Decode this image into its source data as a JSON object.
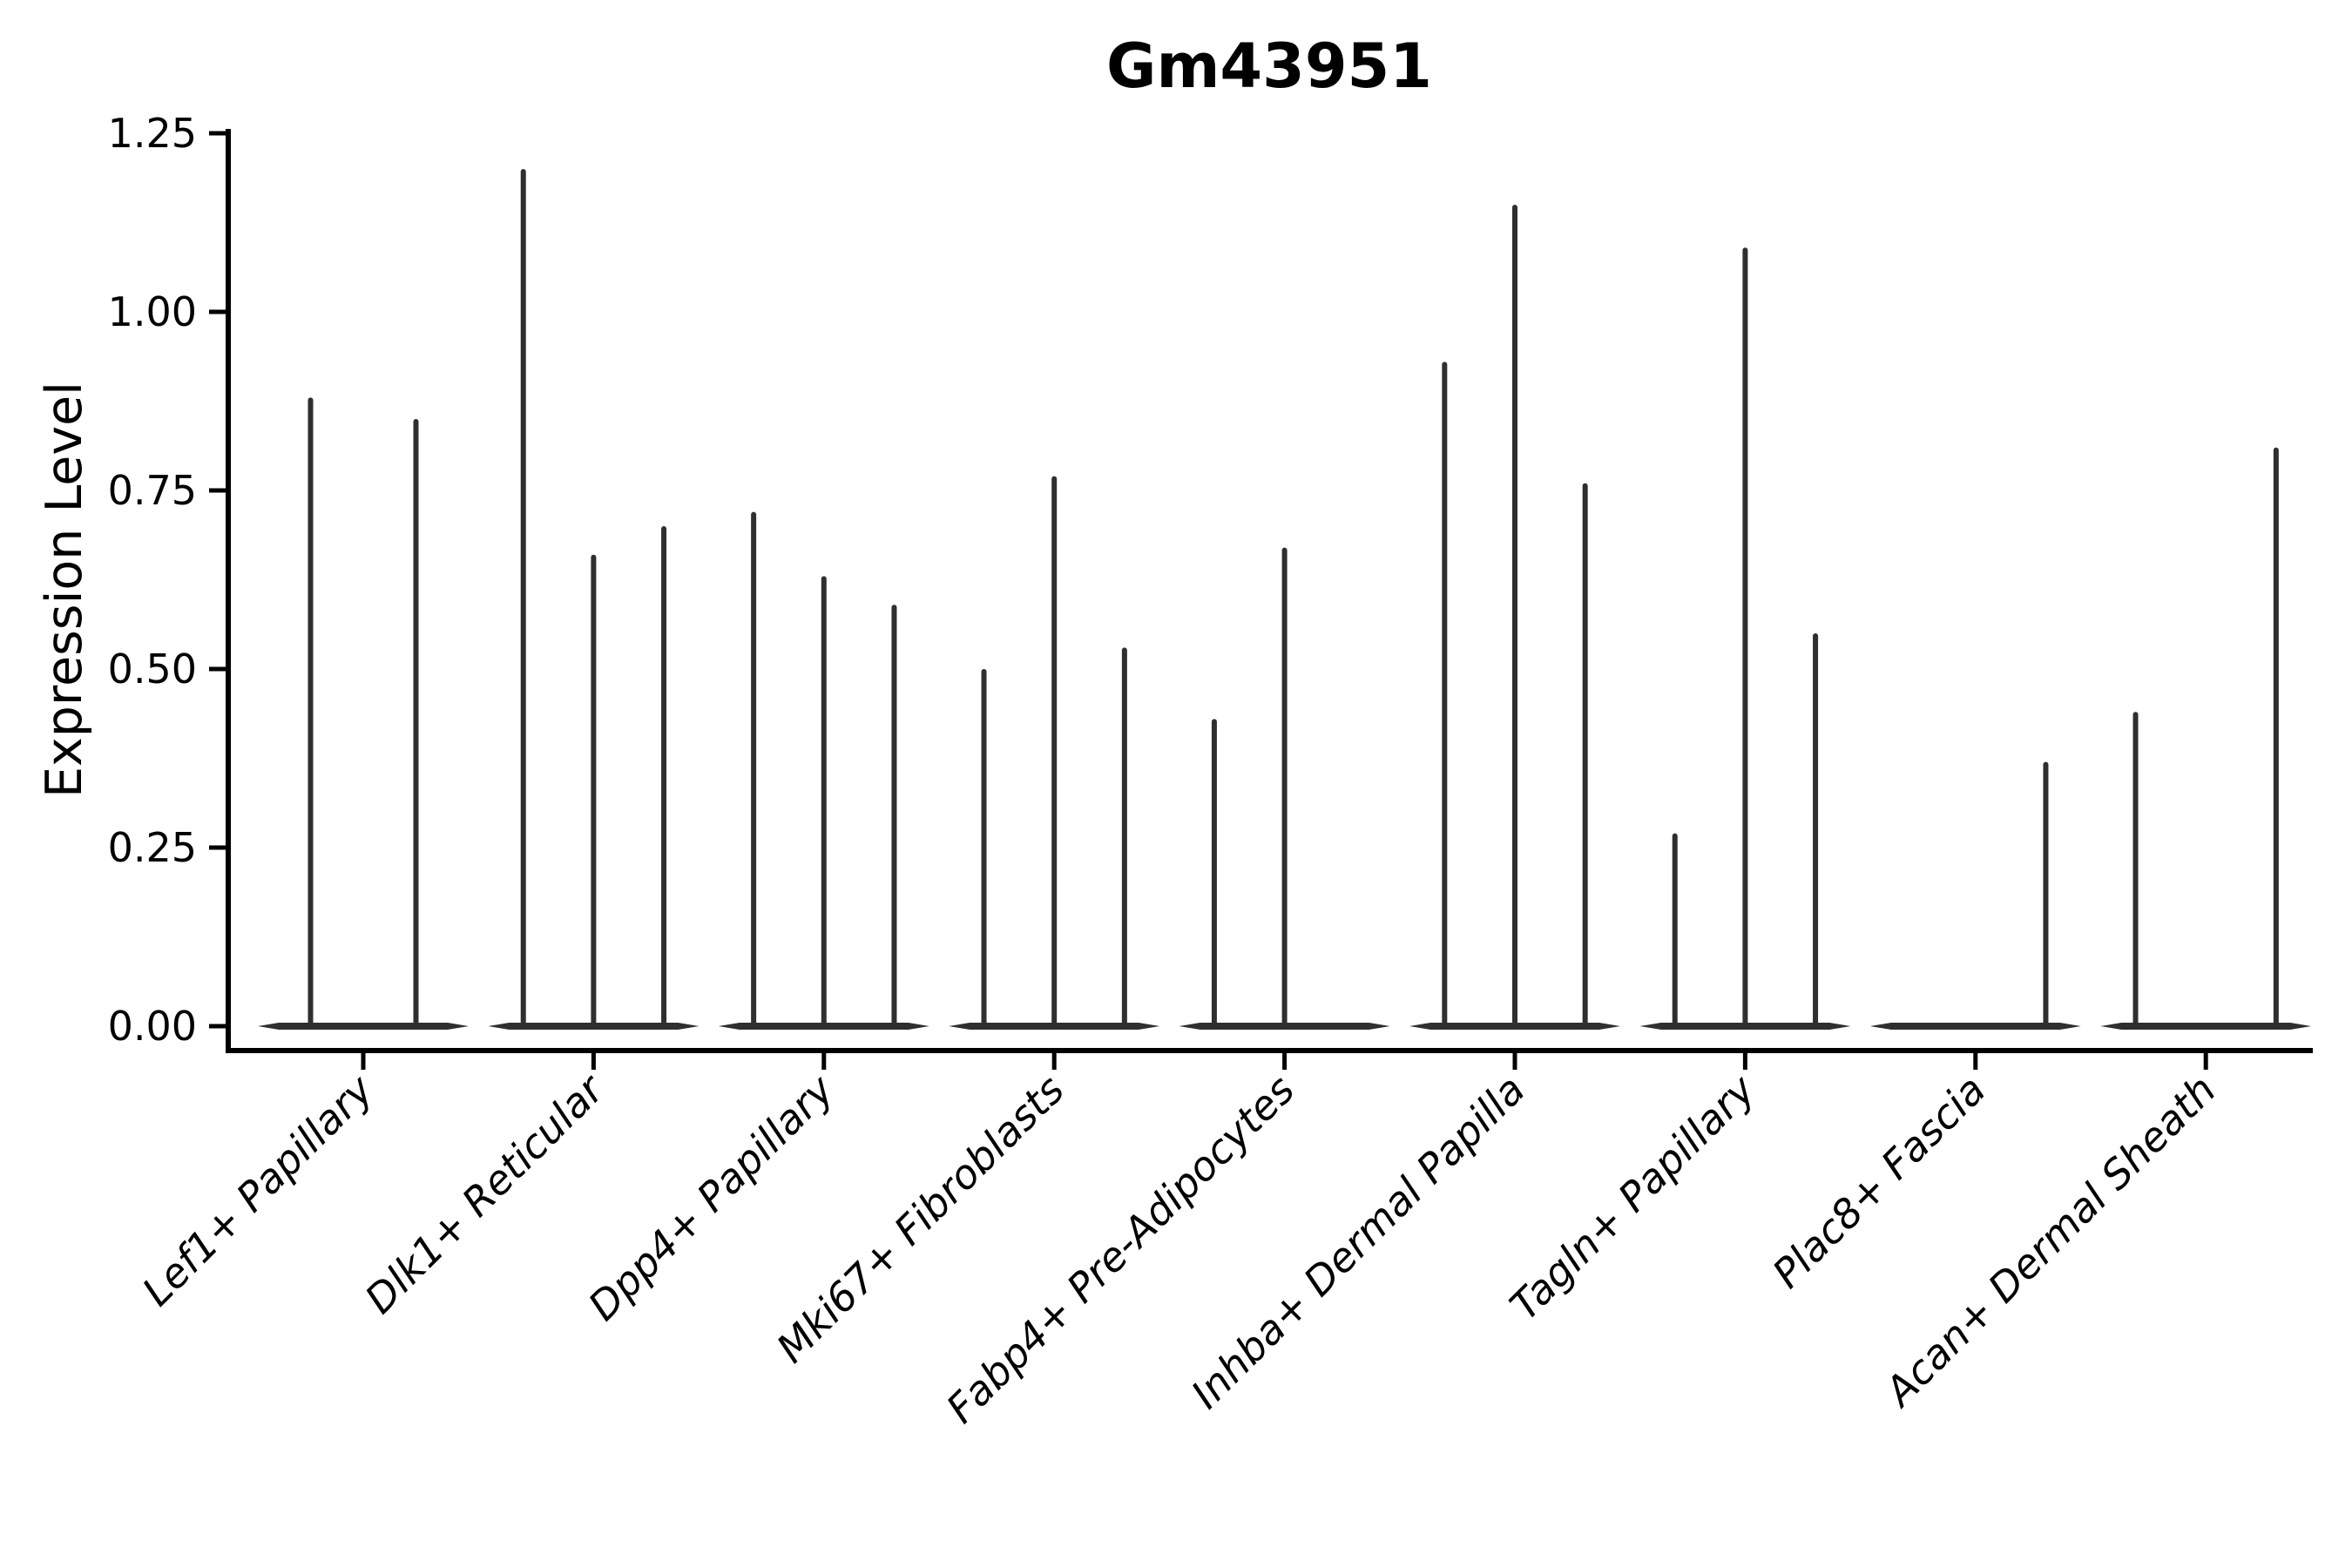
{
  "chart_data": {
    "type": "violin",
    "title": "Gm43951",
    "ylabel": "Expression Level",
    "xlabel": "",
    "grid": false,
    "legend": null,
    "background": "#ffffff",
    "ylim": [
      -0.07,
      1.26
    ],
    "yticks": [
      {
        "label": "0.00",
        "value": 0.0
      },
      {
        "label": "0.25",
        "value": 0.25
      },
      {
        "label": "0.50",
        "value": 0.5
      },
      {
        "label": "0.75",
        "value": 0.75
      },
      {
        "label": "1.00",
        "value": 1.0
      },
      {
        "label": "1.25",
        "value": 1.25
      }
    ],
    "categories": [
      "Lef1+ Papillary",
      "Dlk1+ Reticular",
      "Dpp4+ Papillary",
      "Mki67+ Fibroblasts",
      "Fabp4+ Pre-Adipocytes",
      "Inhba+ Dermal Papilla",
      "Tagln+ Papillary",
      "Plac8+ Fascia",
      "Acan+ Dermal Sheath"
    ],
    "violins": [
      {
        "category": "Lef1+ Papillary",
        "sub_violin_max_expression": [
          0.88,
          0.85
        ]
      },
      {
        "category": "Dlk1+ Reticular",
        "sub_violin_max_expression": [
          1.2,
          0.66,
          0.7
        ]
      },
      {
        "category": "Dpp4+ Papillary",
        "sub_violin_max_expression": [
          0.72,
          0.63,
          0.59
        ]
      },
      {
        "category": "Mki67+ Fibroblasts",
        "sub_violin_max_expression": [
          0.5,
          0.77,
          0.53
        ]
      },
      {
        "category": "Fabp4+ Pre-Adipocytes",
        "sub_violin_max_expression": [
          0.43,
          0.67,
          0.0
        ]
      },
      {
        "category": "Inhba+ Dermal Papilla",
        "sub_violin_max_expression": [
          0.93,
          1.15,
          0.76
        ]
      },
      {
        "category": "Tagln+ Papillary",
        "sub_violin_max_expression": [
          0.27,
          1.09,
          0.55
        ]
      },
      {
        "category": "Plac8+ Fascia",
        "sub_violin_max_expression": [
          0.0,
          0.0,
          0.37
        ]
      },
      {
        "category": "Acan+ Dermal Sheath",
        "sub_violin_max_expression": [
          0.44,
          0.0,
          0.81
        ]
      }
    ],
    "colors": {
      "violin": "#2f2f2f",
      "axis": "#000000",
      "text": "#000000",
      "background": "#ffffff"
    }
  }
}
